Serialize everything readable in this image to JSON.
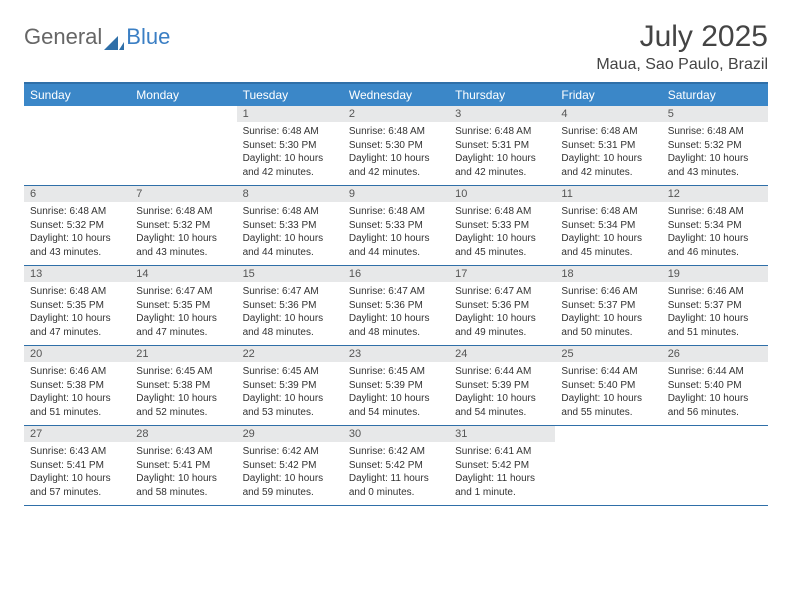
{
  "logo": {
    "part1": "General",
    "part2": "Blue"
  },
  "title": "July 2025",
  "location": "Maua, Sao Paulo, Brazil",
  "colors": {
    "header_bg": "#3b87c8",
    "header_text": "#ffffff",
    "border": "#2f6fa8",
    "daynum_bg": "#e7e8e9",
    "text": "#333333"
  },
  "day_headers": [
    "Sunday",
    "Monday",
    "Tuesday",
    "Wednesday",
    "Thursday",
    "Friday",
    "Saturday"
  ],
  "weeks": [
    [
      {
        "n": "",
        "empty": true
      },
      {
        "n": "",
        "empty": true
      },
      {
        "n": "1",
        "sr": "Sunrise: 6:48 AM",
        "ss": "Sunset: 5:30 PM",
        "dl": "Daylight: 10 hours and 42 minutes."
      },
      {
        "n": "2",
        "sr": "Sunrise: 6:48 AM",
        "ss": "Sunset: 5:30 PM",
        "dl": "Daylight: 10 hours and 42 minutes."
      },
      {
        "n": "3",
        "sr": "Sunrise: 6:48 AM",
        "ss": "Sunset: 5:31 PM",
        "dl": "Daylight: 10 hours and 42 minutes."
      },
      {
        "n": "4",
        "sr": "Sunrise: 6:48 AM",
        "ss": "Sunset: 5:31 PM",
        "dl": "Daylight: 10 hours and 42 minutes."
      },
      {
        "n": "5",
        "sr": "Sunrise: 6:48 AM",
        "ss": "Sunset: 5:32 PM",
        "dl": "Daylight: 10 hours and 43 minutes."
      }
    ],
    [
      {
        "n": "6",
        "sr": "Sunrise: 6:48 AM",
        "ss": "Sunset: 5:32 PM",
        "dl": "Daylight: 10 hours and 43 minutes."
      },
      {
        "n": "7",
        "sr": "Sunrise: 6:48 AM",
        "ss": "Sunset: 5:32 PM",
        "dl": "Daylight: 10 hours and 43 minutes."
      },
      {
        "n": "8",
        "sr": "Sunrise: 6:48 AM",
        "ss": "Sunset: 5:33 PM",
        "dl": "Daylight: 10 hours and 44 minutes."
      },
      {
        "n": "9",
        "sr": "Sunrise: 6:48 AM",
        "ss": "Sunset: 5:33 PM",
        "dl": "Daylight: 10 hours and 44 minutes."
      },
      {
        "n": "10",
        "sr": "Sunrise: 6:48 AM",
        "ss": "Sunset: 5:33 PM",
        "dl": "Daylight: 10 hours and 45 minutes."
      },
      {
        "n": "11",
        "sr": "Sunrise: 6:48 AM",
        "ss": "Sunset: 5:34 PM",
        "dl": "Daylight: 10 hours and 45 minutes."
      },
      {
        "n": "12",
        "sr": "Sunrise: 6:48 AM",
        "ss": "Sunset: 5:34 PM",
        "dl": "Daylight: 10 hours and 46 minutes."
      }
    ],
    [
      {
        "n": "13",
        "sr": "Sunrise: 6:48 AM",
        "ss": "Sunset: 5:35 PM",
        "dl": "Daylight: 10 hours and 47 minutes."
      },
      {
        "n": "14",
        "sr": "Sunrise: 6:47 AM",
        "ss": "Sunset: 5:35 PM",
        "dl": "Daylight: 10 hours and 47 minutes."
      },
      {
        "n": "15",
        "sr": "Sunrise: 6:47 AM",
        "ss": "Sunset: 5:36 PM",
        "dl": "Daylight: 10 hours and 48 minutes."
      },
      {
        "n": "16",
        "sr": "Sunrise: 6:47 AM",
        "ss": "Sunset: 5:36 PM",
        "dl": "Daylight: 10 hours and 48 minutes."
      },
      {
        "n": "17",
        "sr": "Sunrise: 6:47 AM",
        "ss": "Sunset: 5:36 PM",
        "dl": "Daylight: 10 hours and 49 minutes."
      },
      {
        "n": "18",
        "sr": "Sunrise: 6:46 AM",
        "ss": "Sunset: 5:37 PM",
        "dl": "Daylight: 10 hours and 50 minutes."
      },
      {
        "n": "19",
        "sr": "Sunrise: 6:46 AM",
        "ss": "Sunset: 5:37 PM",
        "dl": "Daylight: 10 hours and 51 minutes."
      }
    ],
    [
      {
        "n": "20",
        "sr": "Sunrise: 6:46 AM",
        "ss": "Sunset: 5:38 PM",
        "dl": "Daylight: 10 hours and 51 minutes."
      },
      {
        "n": "21",
        "sr": "Sunrise: 6:45 AM",
        "ss": "Sunset: 5:38 PM",
        "dl": "Daylight: 10 hours and 52 minutes."
      },
      {
        "n": "22",
        "sr": "Sunrise: 6:45 AM",
        "ss": "Sunset: 5:39 PM",
        "dl": "Daylight: 10 hours and 53 minutes."
      },
      {
        "n": "23",
        "sr": "Sunrise: 6:45 AM",
        "ss": "Sunset: 5:39 PM",
        "dl": "Daylight: 10 hours and 54 minutes."
      },
      {
        "n": "24",
        "sr": "Sunrise: 6:44 AM",
        "ss": "Sunset: 5:39 PM",
        "dl": "Daylight: 10 hours and 54 minutes."
      },
      {
        "n": "25",
        "sr": "Sunrise: 6:44 AM",
        "ss": "Sunset: 5:40 PM",
        "dl": "Daylight: 10 hours and 55 minutes."
      },
      {
        "n": "26",
        "sr": "Sunrise: 6:44 AM",
        "ss": "Sunset: 5:40 PM",
        "dl": "Daylight: 10 hours and 56 minutes."
      }
    ],
    [
      {
        "n": "27",
        "sr": "Sunrise: 6:43 AM",
        "ss": "Sunset: 5:41 PM",
        "dl": "Daylight: 10 hours and 57 minutes."
      },
      {
        "n": "28",
        "sr": "Sunrise: 6:43 AM",
        "ss": "Sunset: 5:41 PM",
        "dl": "Daylight: 10 hours and 58 minutes."
      },
      {
        "n": "29",
        "sr": "Sunrise: 6:42 AM",
        "ss": "Sunset: 5:42 PM",
        "dl": "Daylight: 10 hours and 59 minutes."
      },
      {
        "n": "30",
        "sr": "Sunrise: 6:42 AM",
        "ss": "Sunset: 5:42 PM",
        "dl": "Daylight: 11 hours and 0 minutes."
      },
      {
        "n": "31",
        "sr": "Sunrise: 6:41 AM",
        "ss": "Sunset: 5:42 PM",
        "dl": "Daylight: 11 hours and 1 minute."
      },
      {
        "n": "",
        "empty": true
      },
      {
        "n": "",
        "empty": true
      }
    ]
  ]
}
